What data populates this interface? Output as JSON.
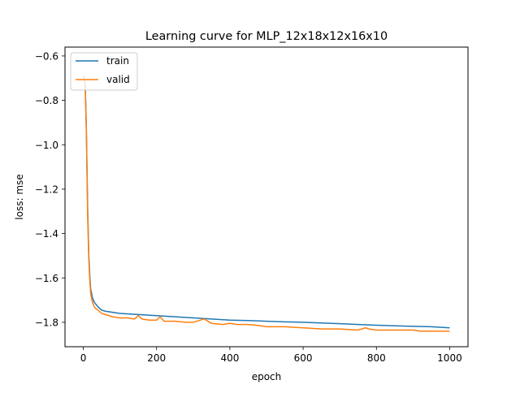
{
  "chart_data": {
    "type": "line",
    "title": "Learning curve for MLP_12x18x12x16x10",
    "xlabel": "epoch",
    "ylabel": "loss: mse",
    "xlim": [
      -50,
      1050
    ],
    "ylim": [
      -1.91,
      -0.56
    ],
    "x_ticks": [
      0,
      200,
      400,
      600,
      800,
      1000
    ],
    "x_tick_labels": [
      "0",
      "200",
      "400",
      "600",
      "800",
      "1000"
    ],
    "y_ticks": [
      -0.6,
      -0.8,
      -1.0,
      -1.2,
      -1.4,
      -1.6,
      -1.8
    ],
    "y_tick_labels": [
      "−0.6",
      "−0.8",
      "−1.0",
      "−1.2",
      "−1.4",
      "−1.6",
      "−1.8"
    ],
    "grid": false,
    "legend_position": "top-left",
    "series": [
      {
        "name": "train",
        "color": "#1f77b4",
        "x": [
          0,
          2,
          5,
          8,
          10,
          12,
          15,
          18,
          20,
          25,
          30,
          35,
          40,
          50,
          60,
          80,
          100,
          150,
          200,
          250,
          300,
          350,
          400,
          450,
          500,
          550,
          600,
          650,
          700,
          750,
          800,
          850,
          900,
          950,
          1000
        ],
        "y": [
          -0.69,
          -0.7,
          -0.72,
          -0.9,
          -1.1,
          -1.3,
          -1.5,
          -1.6,
          -1.65,
          -1.69,
          -1.71,
          -1.72,
          -1.73,
          -1.745,
          -1.75,
          -1.755,
          -1.76,
          -1.765,
          -1.77,
          -1.775,
          -1.78,
          -1.785,
          -1.79,
          -1.792,
          -1.795,
          -1.798,
          -1.8,
          -1.803,
          -1.806,
          -1.81,
          -1.813,
          -1.816,
          -1.818,
          -1.82,
          -1.825
        ]
      },
      {
        "name": "valid",
        "color": "#ff7f0e",
        "x": [
          0,
          2,
          5,
          8,
          10,
          12,
          15,
          18,
          20,
          25,
          30,
          35,
          40,
          50,
          60,
          80,
          100,
          120,
          140,
          150,
          160,
          180,
          200,
          210,
          220,
          250,
          280,
          300,
          330,
          350,
          380,
          400,
          420,
          450,
          480,
          500,
          550,
          600,
          650,
          700,
          750,
          770,
          780,
          800,
          850,
          900,
          920,
          950,
          1000
        ],
        "y": [
          -0.69,
          -0.7,
          -0.73,
          -0.92,
          -1.12,
          -1.33,
          -1.52,
          -1.62,
          -1.67,
          -1.71,
          -1.73,
          -1.74,
          -1.745,
          -1.76,
          -1.765,
          -1.775,
          -1.78,
          -1.78,
          -1.785,
          -1.77,
          -1.785,
          -1.79,
          -1.79,
          -1.775,
          -1.795,
          -1.795,
          -1.8,
          -1.8,
          -1.785,
          -1.805,
          -1.81,
          -1.805,
          -1.81,
          -1.81,
          -1.815,
          -1.82,
          -1.82,
          -1.825,
          -1.83,
          -1.83,
          -1.835,
          -1.825,
          -1.83,
          -1.835,
          -1.835,
          -1.835,
          -1.84,
          -1.84,
          -1.84
        ]
      }
    ]
  }
}
